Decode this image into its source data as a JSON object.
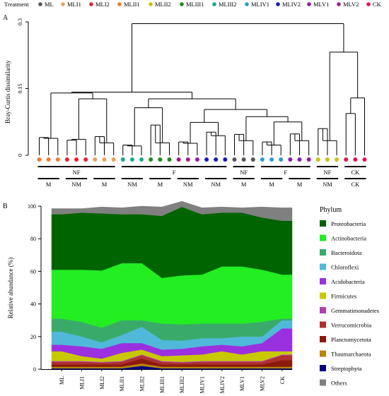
{
  "panel_a": {
    "label": "A"
  },
  "panel_b": {
    "label": "B"
  },
  "legend_top": {
    "title": "Treatment",
    "entries": [
      {
        "name": "ML",
        "color": "#555555"
      },
      {
        "name": "MLI1",
        "color": "#e8a35a"
      },
      {
        "name": "MLI2",
        "color": "#e8202a"
      },
      {
        "name": "MLII1",
        "color": "#f07a2e"
      },
      {
        "name": "MLII2",
        "color": "#c9c015"
      },
      {
        "name": "MLIII1",
        "color": "#1a8a1a"
      },
      {
        "name": "MLIII2",
        "color": "#1aa88a"
      },
      {
        "name": "MLIV1",
        "color": "#2a9ad0"
      },
      {
        "name": "MLIV2",
        "color": "#1a1aa8"
      },
      {
        "name": "MLV1",
        "color": "#8a1aa8"
      },
      {
        "name": "MLV2",
        "color": "#a01a8a"
      },
      {
        "name": "CK",
        "color": "#e0105a"
      }
    ]
  },
  "chart_data": [
    {
      "type": "dendrogram",
      "ylabel": "Bray-Curtis dissimilarity",
      "yticks": [
        "0",
        "0.15",
        "0.3"
      ],
      "ylim": [
        0,
        0.3
      ],
      "leaves": [
        "MLII1",
        "MLII1",
        "MLII1",
        "MLI2",
        "MLI2",
        "MLI2",
        "MLI1",
        "MLI1",
        "MLI1",
        "MLIII2",
        "MLIII2",
        "MLIII2",
        "MLIII1",
        "MLIII1",
        "MLIII1",
        "MLV2",
        "MLV2",
        "MLV2",
        "MLIV2",
        "MLIV2",
        "MLIV2",
        "ML",
        "ML",
        "ML",
        "MLIV1",
        "MLIV1",
        "MLIV1",
        "MLV1",
        "MLV1",
        "MLV1",
        "MLII2",
        "MLII2",
        "MLII2",
        "CK",
        "CK",
        "CK"
      ],
      "group_rows": [
        [
          {
            "label": "NF",
            "span": [
              0,
              8
            ]
          },
          {
            "label": "F",
            "span": [
              9,
              20
            ]
          },
          {
            "label": "NF",
            "span": [
              21,
              23
            ]
          },
          {
            "label": "F",
            "span": [
              24,
              29
            ]
          },
          {
            "label": "NF",
            "span": [
              30,
              32
            ]
          },
          {
            "label": "CK",
            "span": [
              33,
              35
            ]
          }
        ],
        [
          {
            "label": "M",
            "span": [
              0,
              2
            ]
          },
          {
            "label": "NM",
            "span": [
              3,
              5
            ]
          },
          {
            "label": "M",
            "span": [
              6,
              8
            ]
          },
          {
            "label": "NM",
            "span": [
              9,
              11
            ]
          },
          {
            "label": "M",
            "span": [
              12,
              14
            ]
          },
          {
            "label": "NM",
            "span": [
              15,
              17
            ]
          },
          {
            "label": "NM",
            "span": [
              18,
              20
            ]
          },
          {
            "label": "M",
            "span": [
              21,
              23
            ]
          },
          {
            "label": "M",
            "span": [
              24,
              26
            ]
          },
          {
            "label": "M",
            "span": [
              27,
              29
            ]
          },
          {
            "label": "NM",
            "span": [
              30,
              32
            ]
          },
          {
            "label": "CK",
            "span": [
              33,
              35
            ]
          }
        ]
      ],
      "merges": [
        {
          "id": "a1",
          "children": [
            "L0",
            "L1"
          ],
          "h": 0.04
        },
        {
          "id": "a2",
          "children": [
            "a1",
            "L2"
          ],
          "h": 0.038
        },
        {
          "id": "b1",
          "children": [
            "L3",
            "L4"
          ],
          "h": 0.034
        },
        {
          "id": "b2",
          "children": [
            "b1",
            "L5"
          ],
          "h": 0.036
        },
        {
          "id": "c1",
          "children": [
            "L6",
            "L7"
          ],
          "h": 0.042
        },
        {
          "id": "c2",
          "children": [
            "c1",
            "L8"
          ],
          "h": 0.028
        },
        {
          "id": "bc",
          "children": [
            "b2",
            "c2"
          ],
          "h": 0.127
        },
        {
          "id": "abc",
          "children": [
            "a2",
            "bc"
          ],
          "h": 0.14
        },
        {
          "id": "d1",
          "children": [
            "L9",
            "L10"
          ],
          "h": 0.023
        },
        {
          "id": "d2",
          "children": [
            "d1",
            "L11"
          ],
          "h": 0.021
        },
        {
          "id": "e1",
          "children": [
            "L12",
            "L13"
          ],
          "h": 0.068
        },
        {
          "id": "e2",
          "children": [
            "e1",
            "L14"
          ],
          "h": 0.028
        },
        {
          "id": "de",
          "children": [
            "d2",
            "e2"
          ],
          "h": 0.107
        },
        {
          "id": "f1",
          "children": [
            "L15",
            "L16"
          ],
          "h": 0.03
        },
        {
          "id": "f2",
          "children": [
            "f1",
            "L17"
          ],
          "h": 0.027
        },
        {
          "id": "g1",
          "children": [
            "L18",
            "L19"
          ],
          "h": 0.052
        },
        {
          "id": "g2",
          "children": [
            "g1",
            "L20"
          ],
          "h": 0.044
        },
        {
          "id": "fg",
          "children": [
            "f2",
            "g2"
          ],
          "h": 0.074
        },
        {
          "id": "h1",
          "children": [
            "L21",
            "L22"
          ],
          "h": 0.047
        },
        {
          "id": "h2",
          "children": [
            "h1",
            "L23"
          ],
          "h": 0.033
        },
        {
          "id": "i1",
          "children": [
            "L24",
            "L25"
          ],
          "h": 0.03
        },
        {
          "id": "i2",
          "children": [
            "i1",
            "L26"
          ],
          "h": 0.023
        },
        {
          "id": "j1",
          "children": [
            "L27",
            "L28"
          ],
          "h": 0.048
        },
        {
          "id": "j2",
          "children": [
            "j1",
            "L29"
          ],
          "h": 0.033
        },
        {
          "id": "ij",
          "children": [
            "i2",
            "j2"
          ],
          "h": 0.075
        },
        {
          "id": "hij",
          "children": [
            "h2",
            "ij"
          ],
          "h": 0.087
        },
        {
          "id": "fghij",
          "children": [
            "fg",
            "hij"
          ],
          "h": 0.103
        },
        {
          "id": "defghij",
          "children": [
            "de",
            "fghij"
          ],
          "h": 0.127
        },
        {
          "id": "all1",
          "children": [
            "abc",
            "defghij"
          ],
          "h": 0.142
        },
        {
          "id": "all2",
          "children": [
            "all1"
          ],
          "h": 0.15
        },
        {
          "id": "k1",
          "children": [
            "L30",
            "L31"
          ],
          "h": 0.06
        },
        {
          "id": "k2",
          "children": [
            "k1",
            "L32"
          ],
          "h": 0.033
        },
        {
          "id": "l1",
          "children": [
            "L33",
            "L34"
          ],
          "h": 0.094
        },
        {
          "id": "l2",
          "children": [
            "l1",
            "L35"
          ],
          "h": 0.129
        },
        {
          "id": "kl",
          "children": [
            "k2",
            "l2"
          ],
          "h": 0.232
        },
        {
          "id": "root",
          "children": [
            "all2",
            "kl"
          ],
          "h": 0.296
        }
      ]
    },
    {
      "type": "stacked-area",
      "ylabel": "Relative abundance (%)",
      "ylim": [
        0,
        100
      ],
      "yticks": [
        0,
        20,
        40,
        60,
        80,
        100
      ],
      "categories": [
        "ML",
        "MLI1",
        "MLI2",
        "MLII1",
        "MLII2",
        "MLIII1",
        "MLIII2",
        "MLIV1",
        "MLIV2",
        "MLV1",
        "MLV2",
        "CK"
      ],
      "legend_title": "Phylum",
      "series": [
        {
          "name": "Streptophyta",
          "color": "#000080",
          "values": [
            0.5,
            0.5,
            0.5,
            0.5,
            2,
            0.5,
            0.5,
            0.5,
            0.5,
            0.5,
            0.5,
            0.5
          ]
        },
        {
          "name": "Thaumarchaeota",
          "color": "#b8860b",
          "values": [
            1,
            1,
            1,
            1,
            1.5,
            1,
            1,
            1,
            1,
            1,
            1,
            1
          ]
        },
        {
          "name": "Planctomycetota",
          "color": "#8b1a0a",
          "values": [
            1.5,
            1.5,
            1.5,
            1.5,
            3,
            1.5,
            1.5,
            1.5,
            1.5,
            1.5,
            1.5,
            4
          ]
        },
        {
          "name": "Verrucomicrobia",
          "color": "#b03030",
          "values": [
            1.5,
            1.5,
            1,
            1.5,
            2,
            1.5,
            1,
            1.5,
            1.5,
            1.5,
            1.5,
            3
          ]
        },
        {
          "name": "Gemmatimonadetes",
          "color": "#b040b0",
          "values": [
            0.5,
            0.5,
            0.5,
            0.5,
            0.5,
            0.5,
            0.5,
            0.5,
            0.5,
            0.5,
            0.5,
            0.5
          ]
        },
        {
          "name": "Firmicutes",
          "color": "#c8c800",
          "values": [
            6,
            3,
            2,
            5,
            3,
            3,
            4,
            4,
            6,
            4,
            6,
            2
          ]
        },
        {
          "name": "Acidobacteria",
          "color": "#9a30e0",
          "values": [
            4,
            6,
            6,
            6,
            4,
            4,
            4,
            5,
            4,
            5,
            5,
            14
          ]
        },
        {
          "name": "Chloroflexi",
          "color": "#50b8d8",
          "values": [
            8,
            6,
            4,
            5,
            10,
            6,
            5,
            5,
            4,
            6,
            4,
            5
          ]
        },
        {
          "name": "Bacteroidota",
          "color": "#3aaa6a",
          "values": [
            8,
            9,
            9,
            9,
            4,
            10,
            10,
            9,
            9,
            8,
            9,
            1
          ]
        },
        {
          "name": "Actinobacteria",
          "color": "#22ee22",
          "values": [
            30,
            32,
            35,
            35,
            35,
            28,
            30,
            30,
            35,
            35,
            32,
            27
          ]
        },
        {
          "name": "Proteobacteria",
          "color": "#006400",
          "values": [
            34,
            35,
            35,
            30,
            30,
            38,
            42,
            37,
            33,
            33,
            32,
            33
          ]
        },
        {
          "name": "Others",
          "color": "#808080",
          "values": [
            3.5,
            2.5,
            4,
            4,
            5,
            5.5,
            3.5,
            4,
            3.5,
            3,
            6.5,
            8
          ]
        }
      ]
    }
  ]
}
